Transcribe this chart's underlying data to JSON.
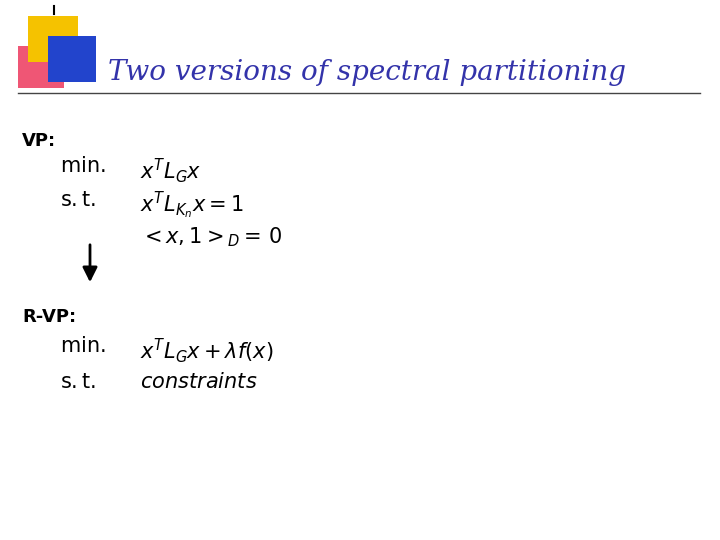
{
  "title": "Two versions of spectral partitioning",
  "title_color": "#3333aa",
  "title_fontsize": 20,
  "bg_color": "#ffffff",
  "vp_label": "VP:",
  "rvp_label": "R-VP:",
  "label_fontsize": 13,
  "label_color": "#000000",
  "math_color": "#000000",
  "math_fontsize": 15,
  "line_color": "#444444",
  "square_yellow": "#f5c200",
  "square_blue": "#2244cc",
  "square_pink": "#ee4466"
}
